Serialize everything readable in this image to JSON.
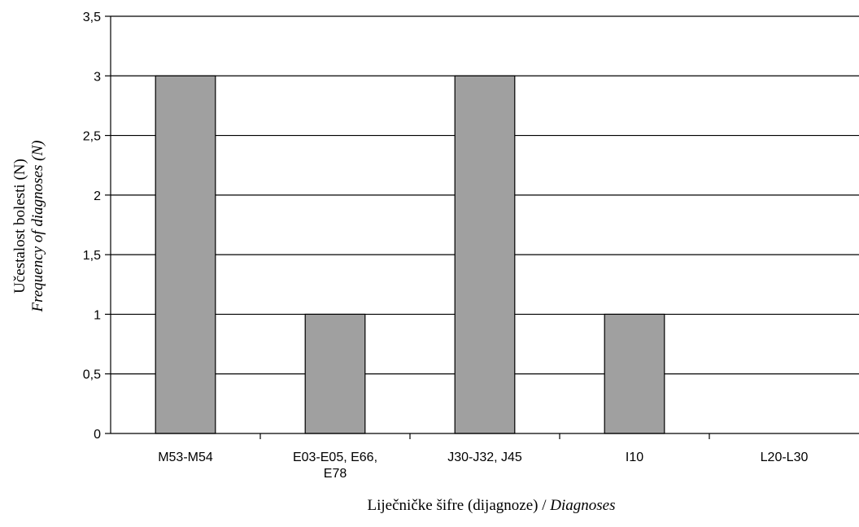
{
  "chart_data": {
    "type": "bar",
    "categories": [
      [
        "M53-M54"
      ],
      [
        "E03-E05, E66,",
        "E78"
      ],
      [
        "J30-J32, J45"
      ],
      [
        "I10"
      ],
      [
        "L20-L30"
      ]
    ],
    "values": [
      3,
      1,
      3,
      1,
      0
    ],
    "xlabel": {
      "main": "Liječničke šifre (dijagnoze) / ",
      "italic": "Diagnoses"
    },
    "ylabel": {
      "line1": "Učestalost bolesti (N)",
      "line2": "Frequency of diagnoses (N)"
    },
    "ylim": [
      0,
      3.5
    ],
    "yticks": [
      {
        "value": 0,
        "label": "0"
      },
      {
        "value": 0.5,
        "label": "0,5"
      },
      {
        "value": 1,
        "label": "1"
      },
      {
        "value": 1.5,
        "label": "1,5"
      },
      {
        "value": 2,
        "label": "2"
      },
      {
        "value": 2.5,
        "label": "2,5"
      },
      {
        "value": 3,
        "label": "3"
      },
      {
        "value": 3.5,
        "label": "3,5"
      }
    ],
    "grid": true,
    "bar_color": "#a0a0a0",
    "bar_stroke": "#000000"
  }
}
